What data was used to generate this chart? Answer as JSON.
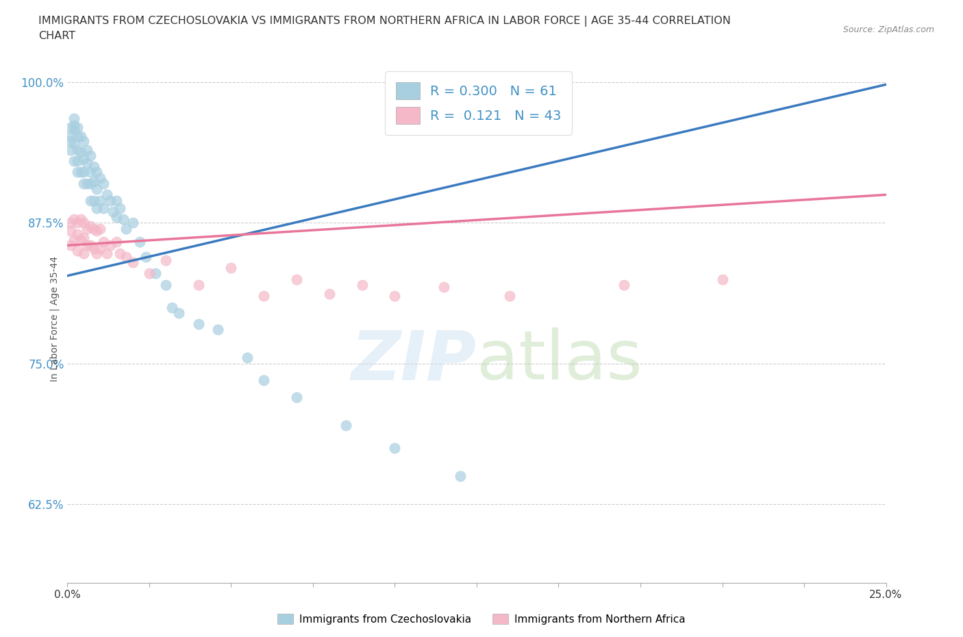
{
  "title_line1": "IMMIGRANTS FROM CZECHOSLOVAKIA VS IMMIGRANTS FROM NORTHERN AFRICA IN LABOR FORCE | AGE 35-44 CORRELATION",
  "title_line2": "CHART",
  "source_text": "Source: ZipAtlas.com",
  "ylabel": "In Labor Force | Age 35-44",
  "xmin": 0.0,
  "xmax": 0.25,
  "ymin": 0.555,
  "ymax": 1.025,
  "yticks": [
    0.625,
    0.75,
    0.875,
    1.0
  ],
  "yticklabels": [
    "62.5%",
    "75.0%",
    "87.5%",
    "100.0%"
  ],
  "xticks": [
    0.0,
    0.025,
    0.05,
    0.075,
    0.1,
    0.125,
    0.15,
    0.175,
    0.2,
    0.225,
    0.25
  ],
  "color_blue": "#a8cfe0",
  "color_pink": "#f4b8c8",
  "color_blue_line": "#3a7abf",
  "color_pink_line": "#e8759a",
  "R_blue": 0.3,
  "N_blue": 61,
  "R_pink": 0.121,
  "N_pink": 43,
  "legend_label_blue": "Immigrants from Czechoslovakia",
  "legend_label_pink": "Immigrants from Northern Africa",
  "blue_x": [
    0.001,
    0.001,
    0.001,
    0.001,
    0.002,
    0.002,
    0.002,
    0.002,
    0.002,
    0.003,
    0.003,
    0.003,
    0.003,
    0.003,
    0.004,
    0.004,
    0.004,
    0.005,
    0.005,
    0.005,
    0.005,
    0.006,
    0.006,
    0.006,
    0.007,
    0.007,
    0.007,
    0.007,
    0.008,
    0.008,
    0.008,
    0.009,
    0.009,
    0.009,
    0.01,
    0.01,
    0.011,
    0.011,
    0.012,
    0.013,
    0.014,
    0.015,
    0.015,
    0.016,
    0.017,
    0.018,
    0.02,
    0.022,
    0.024,
    0.027,
    0.03,
    0.032,
    0.034,
    0.04,
    0.046,
    0.055,
    0.06,
    0.07,
    0.085,
    0.1,
    0.12
  ],
  "blue_y": [
    0.96,
    0.952,
    0.948,
    0.94,
    0.968,
    0.962,
    0.958,
    0.945,
    0.93,
    0.96,
    0.952,
    0.94,
    0.93,
    0.92,
    0.952,
    0.938,
    0.92,
    0.948,
    0.932,
    0.92,
    0.91,
    0.94,
    0.928,
    0.91,
    0.935,
    0.92,
    0.91,
    0.895,
    0.925,
    0.912,
    0.895,
    0.92,
    0.905,
    0.888,
    0.915,
    0.895,
    0.91,
    0.888,
    0.9,
    0.895,
    0.885,
    0.895,
    0.88,
    0.888,
    0.878,
    0.87,
    0.875,
    0.858,
    0.845,
    0.83,
    0.82,
    0.8,
    0.795,
    0.785,
    0.78,
    0.755,
    0.735,
    0.72,
    0.695,
    0.675,
    0.65
  ],
  "pink_x": [
    0.001,
    0.001,
    0.001,
    0.002,
    0.002,
    0.003,
    0.003,
    0.003,
    0.004,
    0.004,
    0.005,
    0.005,
    0.005,
    0.006,
    0.006,
    0.007,
    0.007,
    0.008,
    0.008,
    0.009,
    0.009,
    0.01,
    0.01,
    0.011,
    0.012,
    0.013,
    0.015,
    0.016,
    0.018,
    0.02,
    0.025,
    0.03,
    0.04,
    0.05,
    0.06,
    0.07,
    0.08,
    0.09,
    0.1,
    0.115,
    0.135,
    0.17,
    0.2
  ],
  "pink_y": [
    0.875,
    0.868,
    0.855,
    0.878,
    0.86,
    0.875,
    0.865,
    0.85,
    0.878,
    0.86,
    0.875,
    0.862,
    0.848,
    0.87,
    0.855,
    0.872,
    0.855,
    0.87,
    0.852,
    0.868,
    0.848,
    0.87,
    0.852,
    0.858,
    0.848,
    0.855,
    0.858,
    0.848,
    0.845,
    0.84,
    0.83,
    0.842,
    0.82,
    0.835,
    0.81,
    0.825,
    0.812,
    0.82,
    0.81,
    0.818,
    0.81,
    0.82,
    0.825
  ],
  "blue_trend_x": [
    0.0,
    0.25
  ],
  "blue_trend_y": [
    0.828,
    0.998
  ],
  "pink_trend_x": [
    0.0,
    0.25
  ],
  "pink_trend_y": [
    0.855,
    0.9
  ]
}
